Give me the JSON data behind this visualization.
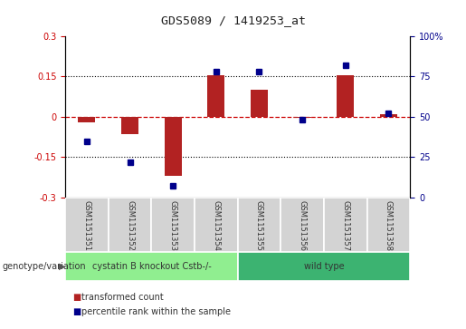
{
  "title": "GDS5089 / 1419253_at",
  "samples": [
    "GSM1151351",
    "GSM1151352",
    "GSM1151353",
    "GSM1151354",
    "GSM1151355",
    "GSM1151356",
    "GSM1151357",
    "GSM1151358"
  ],
  "bar_values": [
    -0.02,
    -0.065,
    -0.22,
    0.155,
    0.1,
    -0.005,
    0.155,
    0.01
  ],
  "percentile_values": [
    35,
    22,
    7,
    78,
    78,
    48,
    82,
    52
  ],
  "ylim_left": [
    -0.3,
    0.3
  ],
  "ylim_right": [
    0,
    100
  ],
  "yticks_left": [
    -0.3,
    -0.15,
    0,
    0.15,
    0.3
  ],
  "yticks_right": [
    0,
    25,
    50,
    75,
    100
  ],
  "bar_color": "#B22222",
  "dot_color": "#00008B",
  "hline_color": "#CC0000",
  "dotted_line_color": "#000000",
  "group1_label": "cystatin B knockout Cstb-/-",
  "group2_label": "wild type",
  "group1_color": "#90EE90",
  "group2_color": "#3CB371",
  "group1_count": 4,
  "group2_count": 4,
  "row_label": "genotype/variation",
  "legend1_label": "transformed count",
  "legend2_label": "percentile rank within the sample",
  "bg_color": "#FFFFFF",
  "plot_bg_color": "#FFFFFF"
}
